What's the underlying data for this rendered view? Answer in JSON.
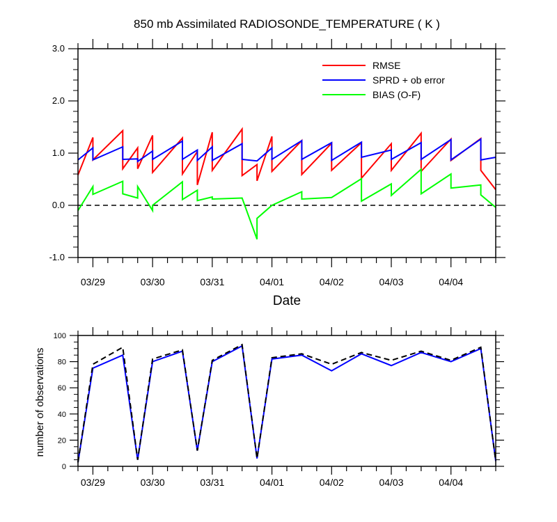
{
  "chart_data": [
    {
      "type": "line",
      "title": "850 mb Assimilated RADIOSONDE_TEMPERATURE ( K )",
      "xlabel": "Date",
      "ylabel": "",
      "ylim": [
        -1.0,
        3.0
      ],
      "yticks": [
        "-1.0",
        "0.0",
        "1.0",
        "2.0",
        "3.0"
      ],
      "xlim": [
        0,
        28
      ],
      "xtick_positions": [
        1,
        5,
        9,
        13,
        17,
        21,
        25
      ],
      "xticks": [
        "03/29",
        "03/30",
        "03/31",
        "04/01",
        "04/02",
        "04/03",
        "04/04"
      ],
      "zero_line": "dashed",
      "legend_position": "top-right",
      "series": [
        {
          "name": "RMSE",
          "color": "#ff0000",
          "points": [
            [
              0,
              0.58
            ],
            [
              1,
              1.3
            ],
            [
              1,
              0.87
            ],
            [
              3,
              1.43
            ],
            [
              3,
              0.7
            ],
            [
              4,
              1.1
            ],
            [
              4,
              0.7
            ],
            [
              5,
              1.34
            ],
            [
              5,
              0.63
            ],
            [
              7,
              1.29
            ],
            [
              7,
              0.6
            ],
            [
              8,
              1.03
            ],
            [
              8,
              0.39
            ],
            [
              9,
              1.4
            ],
            [
              9,
              0.67
            ],
            [
              11,
              1.46
            ],
            [
              11,
              0.57
            ],
            [
              12,
              0.78
            ],
            [
              12,
              0.47
            ],
            [
              13,
              1.32
            ],
            [
              13,
              0.65
            ],
            [
              15,
              1.24
            ],
            [
              15,
              0.59
            ],
            [
              17,
              1.19
            ],
            [
              17,
              0.67
            ],
            [
              19,
              1.2
            ],
            [
              19,
              0.52
            ],
            [
              21,
              1.18
            ],
            [
              21,
              0.67
            ],
            [
              23,
              1.38
            ],
            [
              23,
              0.65
            ],
            [
              25,
              1.27
            ],
            [
              25,
              0.86
            ],
            [
              27,
              1.28
            ],
            [
              27,
              0.67
            ],
            [
              28,
              0.3
            ]
          ]
        },
        {
          "name": "SPRD + ob error",
          "color": "#0000ff",
          "points": [
            [
              0,
              0.87
            ],
            [
              1,
              1.1
            ],
            [
              1,
              0.87
            ],
            [
              3,
              1.12
            ],
            [
              3,
              0.88
            ],
            [
              4,
              0.89
            ],
            [
              4,
              0.84
            ],
            [
              5,
              1.04
            ],
            [
              5,
              0.88
            ],
            [
              7,
              1.23
            ],
            [
              7,
              0.88
            ],
            [
              8,
              1.06
            ],
            [
              8,
              0.86
            ],
            [
              9,
              1.12
            ],
            [
              9,
              0.86
            ],
            [
              11,
              1.18
            ],
            [
              11,
              0.88
            ],
            [
              12,
              0.85
            ],
            [
              13,
              1.1
            ],
            [
              13,
              0.88
            ],
            [
              15,
              1.24
            ],
            [
              15,
              0.88
            ],
            [
              17,
              1.2
            ],
            [
              17,
              0.86
            ],
            [
              19,
              1.21
            ],
            [
              19,
              0.92
            ],
            [
              21,
              1.06
            ],
            [
              21,
              0.88
            ],
            [
              23,
              1.2
            ],
            [
              23,
              0.88
            ],
            [
              25,
              1.26
            ],
            [
              25,
              0.87
            ],
            [
              27,
              1.27
            ],
            [
              27,
              0.87
            ],
            [
              28,
              0.92
            ]
          ]
        },
        {
          "name": "BIAS (O-F)",
          "color": "#00ff00",
          "points": [
            [
              0,
              -0.1
            ],
            [
              1,
              0.36
            ],
            [
              1,
              0.21
            ],
            [
              3,
              0.46
            ],
            [
              3,
              0.22
            ],
            [
              4,
              0.14
            ],
            [
              4,
              0.36
            ],
            [
              5,
              -0.1
            ],
            [
              5,
              0.0
            ],
            [
              7,
              0.45
            ],
            [
              7,
              0.11
            ],
            [
              8,
              0.29
            ],
            [
              8,
              0.09
            ],
            [
              9,
              0.16
            ],
            [
              9,
              0.12
            ],
            [
              11,
              0.14
            ],
            [
              12,
              -0.65
            ],
            [
              12,
              -0.25
            ],
            [
              13,
              0.0
            ],
            [
              15,
              0.26
            ],
            [
              15,
              0.12
            ],
            [
              17,
              0.15
            ],
            [
              19,
              0.51
            ],
            [
              19,
              0.08
            ],
            [
              21,
              0.41
            ],
            [
              21,
              0.19
            ],
            [
              23,
              0.69
            ],
            [
              23,
              0.22
            ],
            [
              25,
              0.6
            ],
            [
              25,
              0.33
            ],
            [
              27,
              0.39
            ],
            [
              27,
              0.2
            ],
            [
              28,
              -0.04
            ]
          ]
        }
      ]
    },
    {
      "type": "line",
      "title": "",
      "xlabel": "",
      "ylabel": "number of observations",
      "ylim": [
        0,
        100
      ],
      "yticks": [
        "0",
        "20",
        "40",
        "60",
        "80",
        "100"
      ],
      "xlim": [
        0,
        28
      ],
      "xtick_positions": [
        1,
        5,
        9,
        13,
        17,
        21,
        25
      ],
      "xticks": [
        "03/29",
        "03/30",
        "03/31",
        "04/01",
        "04/02",
        "04/03",
        "04/04"
      ],
      "series": [
        {
          "color": "#0000ff",
          "line_style": "solid",
          "points": [
            [
              0,
              3
            ],
            [
              1,
              75
            ],
            [
              3,
              85
            ],
            [
              4,
              5
            ],
            [
              5,
              80
            ],
            [
              7,
              88
            ],
            [
              8,
              12
            ],
            [
              9,
              80
            ],
            [
              11,
              92
            ],
            [
              12,
              6
            ],
            [
              13,
              82
            ],
            [
              15,
              85
            ],
            [
              17,
              73
            ],
            [
              19,
              86
            ],
            [
              21,
              77
            ],
            [
              23,
              87
            ],
            [
              25,
              80
            ],
            [
              27,
              90
            ],
            [
              28,
              4
            ]
          ]
        },
        {
          "color": "#000000",
          "line_style": "dashed",
          "points": [
            [
              0,
              3
            ],
            [
              1,
              78
            ],
            [
              3,
              91
            ],
            [
              4,
              5
            ],
            [
              5,
              82
            ],
            [
              7,
              89
            ],
            [
              8,
              12
            ],
            [
              9,
              81
            ],
            [
              11,
              93
            ],
            [
              12,
              6
            ],
            [
              13,
              83
            ],
            [
              15,
              86
            ],
            [
              17,
              78
            ],
            [
              19,
              87
            ],
            [
              21,
              81
            ],
            [
              23,
              88
            ],
            [
              25,
              81
            ],
            [
              27,
              91
            ],
            [
              28,
              4
            ]
          ]
        }
      ]
    }
  ]
}
